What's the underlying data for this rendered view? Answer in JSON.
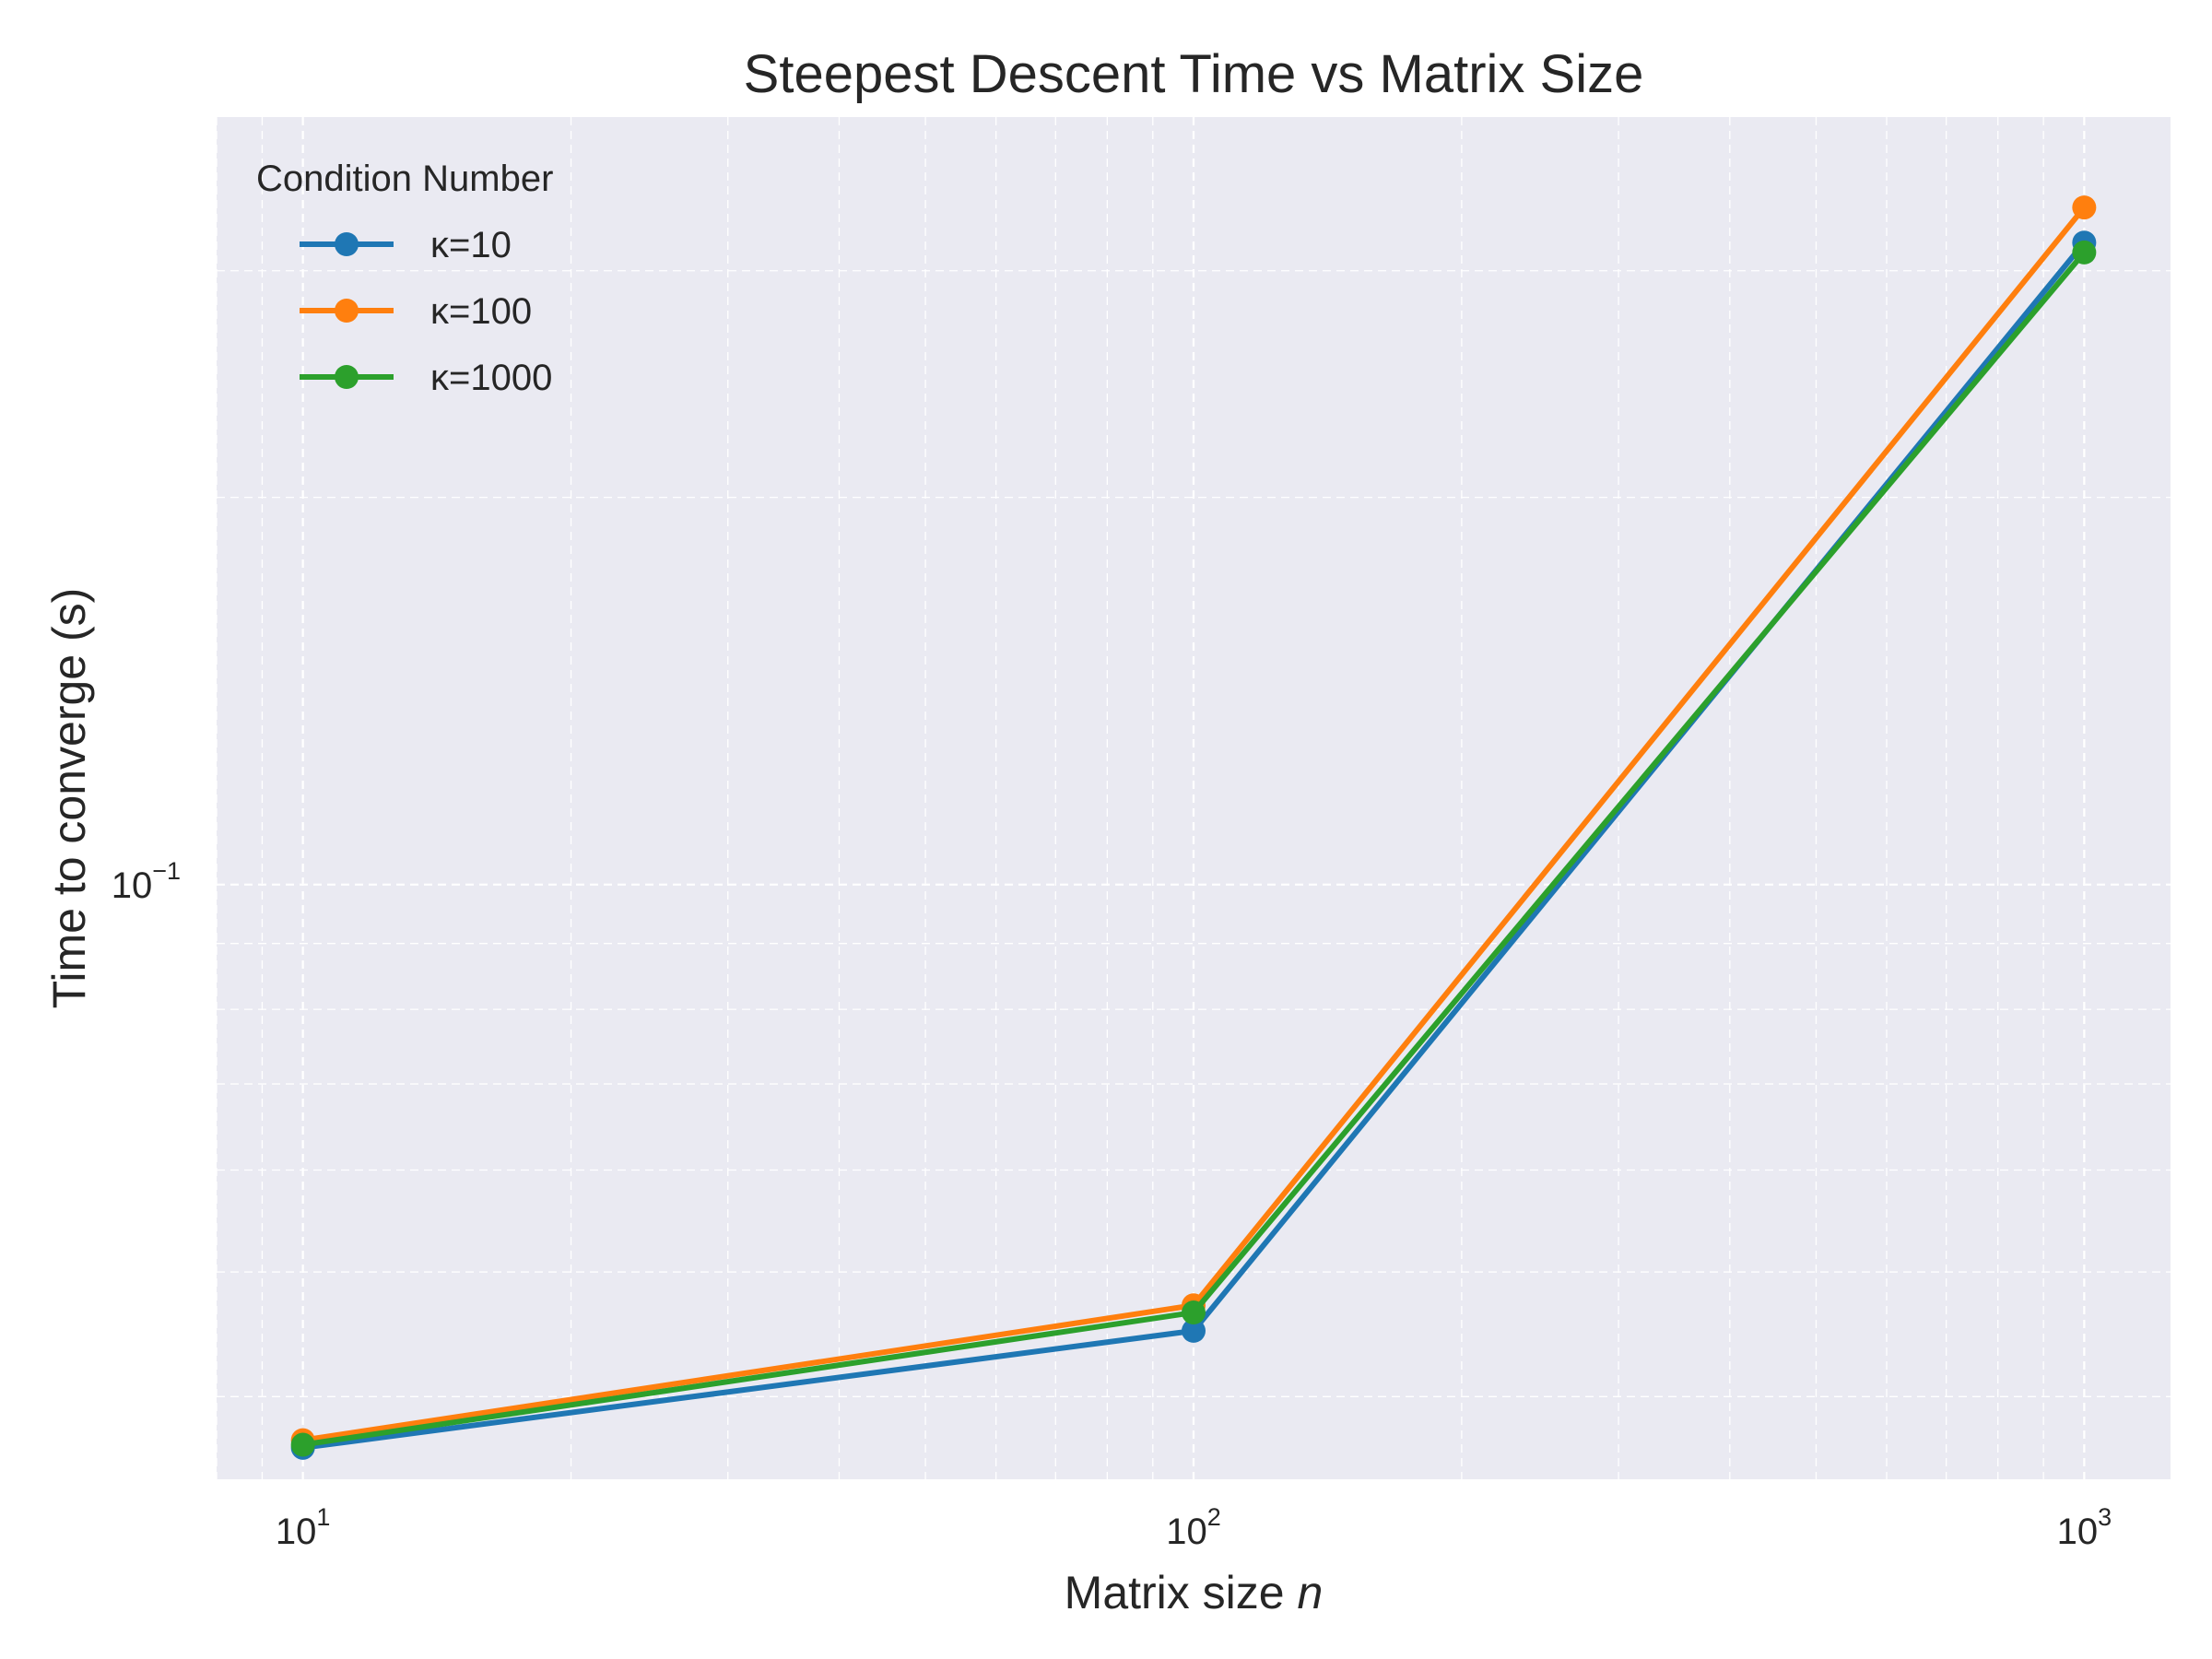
{
  "chart_data": {
    "type": "line",
    "title": "Steepest Descent Time vs Matrix Size",
    "xlabel": "Matrix size",
    "xlabel_var": "n",
    "ylabel": "Time to converge (s)",
    "x_scale": "log",
    "y_scale": "log",
    "x": [
      10,
      100,
      1000
    ],
    "xlim": [
      8,
      1250
    ],
    "ylim": [
      0.0345,
      0.395
    ],
    "x_ticks": [
      {
        "value": 10,
        "base": "10",
        "exp": "1"
      },
      {
        "value": 100,
        "base": "10",
        "exp": "2"
      },
      {
        "value": 1000,
        "base": "10",
        "exp": "3"
      }
    ],
    "y_ticks": [
      {
        "value": 0.1,
        "base": "10",
        "exp": "−1"
      }
    ],
    "grid": true,
    "legend_title": "Condition Number",
    "legend_position": "upper-left",
    "series": [
      {
        "name": "κ=10",
        "color": "#1f77b4",
        "values": [
          0.0365,
          0.045,
          0.3155
        ]
      },
      {
        "name": "κ=100",
        "color": "#ff7f0e",
        "values": [
          0.037,
          0.0471,
          0.336
        ]
      },
      {
        "name": "κ=1000",
        "color": "#2ca02c",
        "values": [
          0.0367,
          0.0465,
          0.31
        ]
      }
    ]
  }
}
